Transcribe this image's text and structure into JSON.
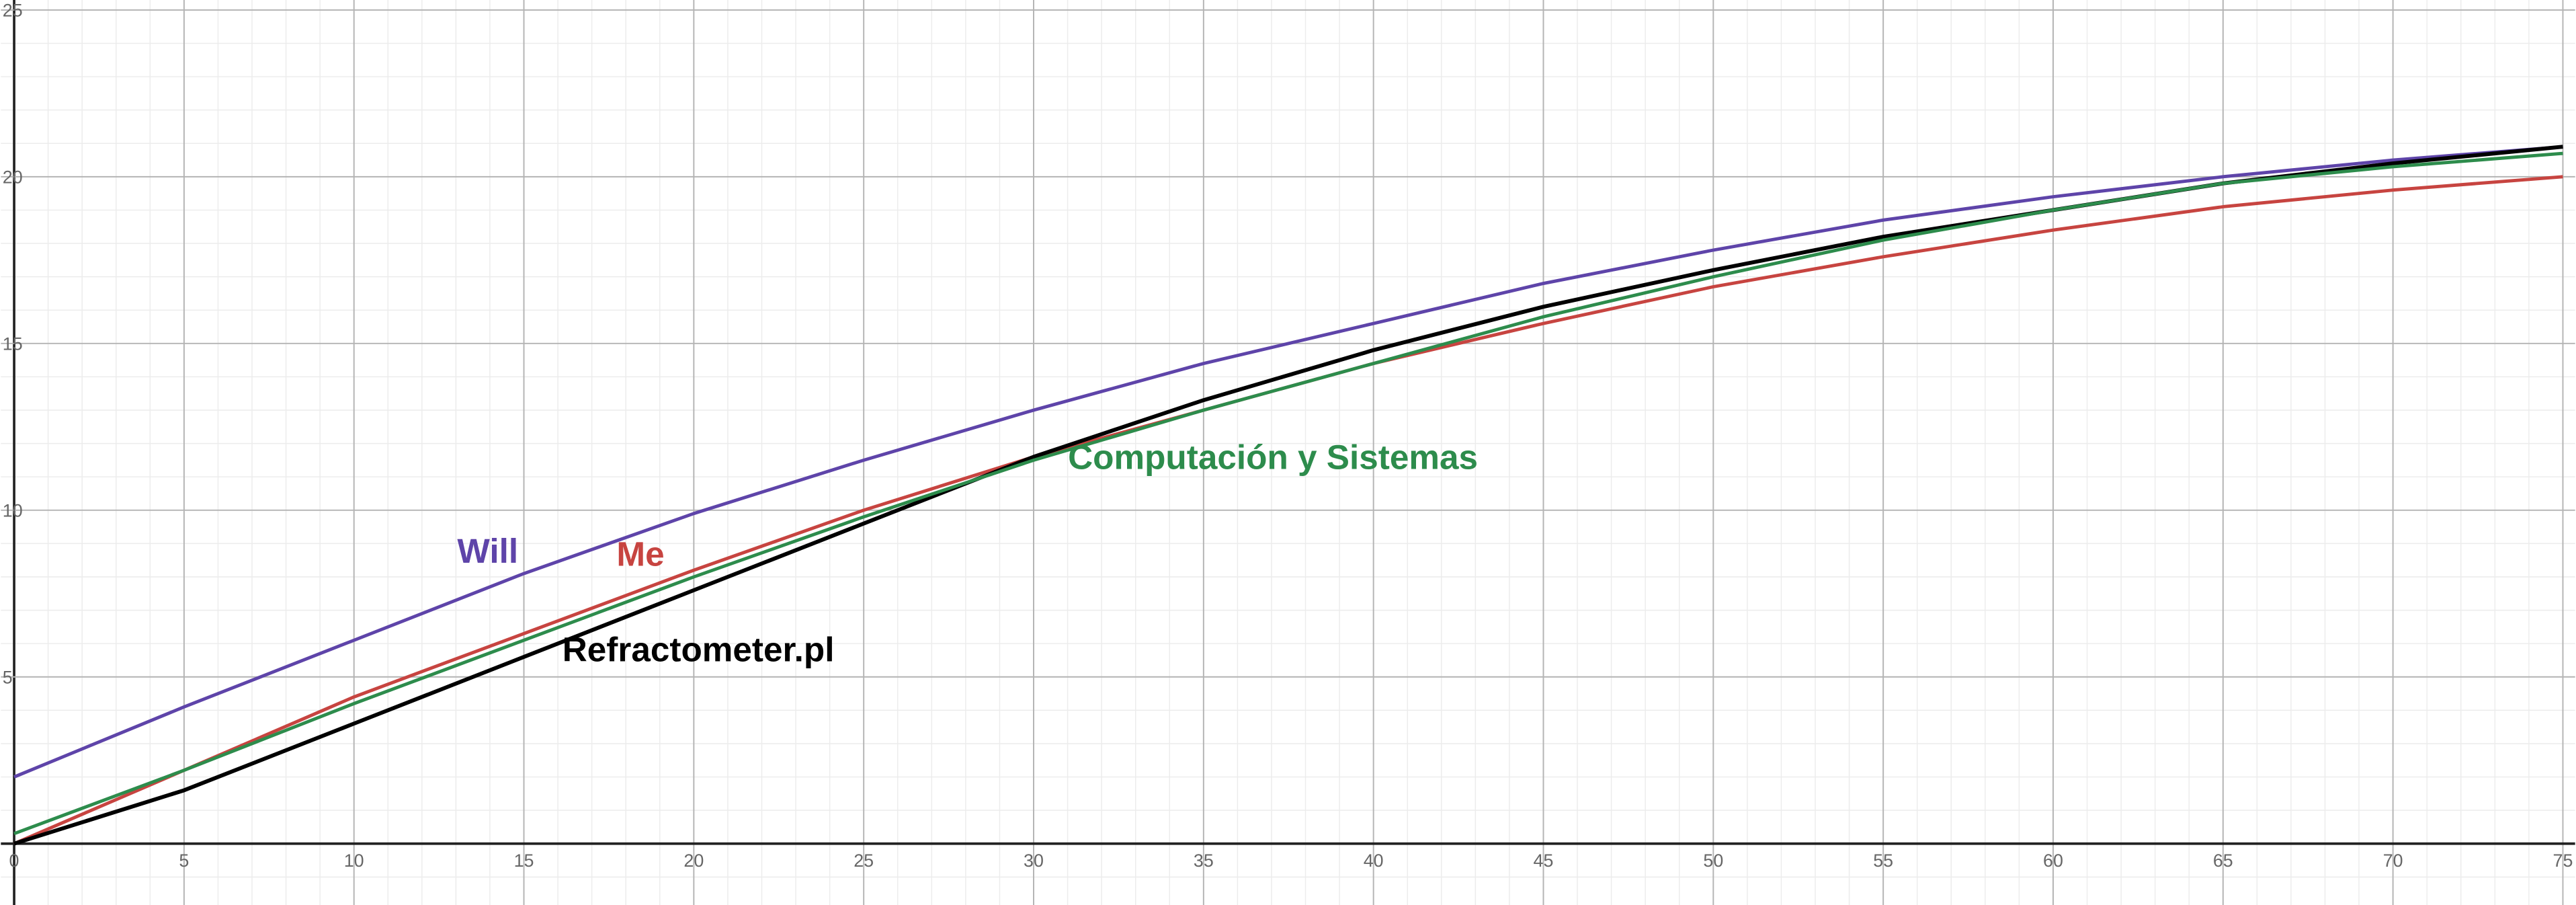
{
  "chart_data": {
    "type": "line",
    "x": [
      0,
      5,
      10,
      15,
      20,
      25,
      30,
      35,
      40,
      45,
      50,
      55,
      60,
      65,
      70,
      75
    ],
    "series": [
      {
        "name": "Will",
        "color": "#5e44a9",
        "values": [
          2.0,
          4.1,
          6.1,
          8.1,
          9.9,
          11.5,
          13.0,
          14.4,
          15.6,
          16.8,
          17.8,
          18.7,
          19.4,
          20.0,
          20.5,
          20.9
        ]
      },
      {
        "name": "Me",
        "color": "#c74440",
        "values": [
          0.0,
          2.2,
          4.4,
          6.3,
          8.2,
          10.0,
          11.6,
          13.0,
          14.4,
          15.6,
          16.7,
          17.6,
          18.4,
          19.1,
          19.6,
          20.0
        ]
      },
      {
        "name": "Refractometer.pl",
        "color": "#000000",
        "values": [
          0.0,
          1.6,
          3.6,
          5.6,
          7.6,
          9.6,
          11.6,
          13.3,
          14.8,
          16.1,
          17.2,
          18.2,
          19.0,
          19.8,
          20.4,
          20.9
        ]
      },
      {
        "name": "Computación y Sistemas",
        "color": "#2d8c4c",
        "values": [
          0.3,
          2.2,
          4.2,
          6.1,
          8.0,
          9.8,
          11.5,
          13.0,
          14.4,
          15.8,
          17.0,
          18.1,
          19.0,
          19.8,
          20.3,
          20.7
        ]
      }
    ],
    "xlim": [
      -0.39,
      75.36
    ],
    "ylim": [
      -1.84,
      25.3
    ],
    "xticks": [
      0,
      5,
      10,
      15,
      20,
      25,
      30,
      35,
      40,
      45,
      50,
      55,
      60,
      65,
      70,
      75
    ],
    "yticks": [
      5,
      10,
      15,
      20,
      25
    ],
    "grid": true
  }
}
